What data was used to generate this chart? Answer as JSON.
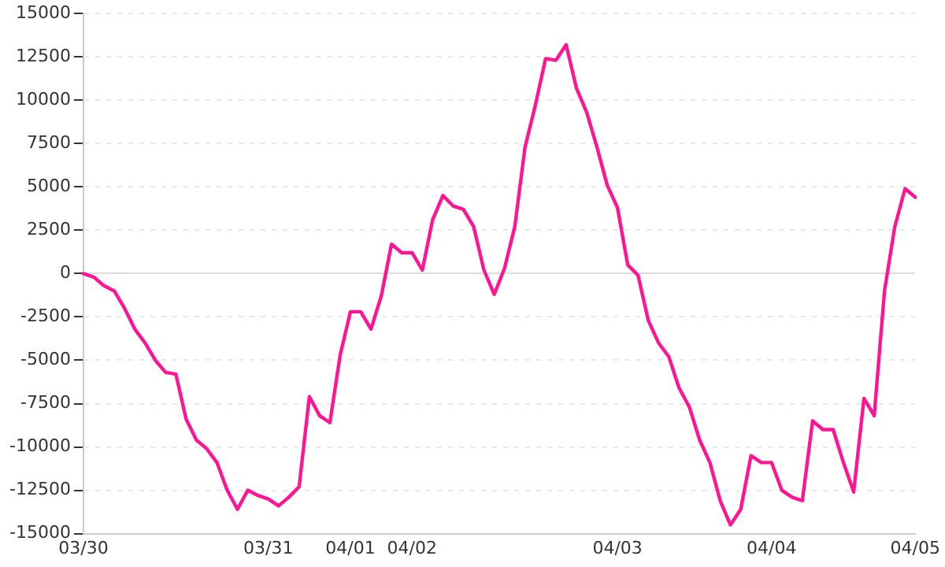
{
  "chart_data": {
    "type": "line",
    "categories": [
      "03/30",
      null,
      null,
      null,
      null,
      null,
      null,
      null,
      null,
      null,
      null,
      null,
      null,
      null,
      null,
      null,
      null,
      null,
      "03/31",
      null,
      null,
      null,
      null,
      null,
      null,
      null,
      "04/01",
      null,
      null,
      null,
      null,
      null,
      "04/02",
      null,
      null,
      null,
      null,
      null,
      null,
      null,
      null,
      null,
      null,
      null,
      null,
      null,
      null,
      null,
      null,
      null,
      null,
      null,
      "04/03",
      null,
      null,
      null,
      null,
      null,
      null,
      null,
      null,
      null,
      null,
      null,
      null,
      null,
      null,
      "04/04",
      null,
      null,
      null,
      null,
      null,
      null,
      null,
      null,
      null,
      null,
      null,
      null,
      null,
      "04/05"
    ],
    "series": [
      {
        "color": "#ff1493",
        "values": [
          0,
          -200,
          -700,
          -1000,
          -2000,
          -3200,
          -4000,
          -5000,
          -5700,
          -5800,
          -8400,
          -9600,
          -10100,
          -10900,
          -12500,
          -13600,
          -12500,
          -12800,
          -13000,
          -13400,
          -12900,
          -12300,
          -7100,
          -8200,
          -8600,
          -4700,
          -2200,
          -2200,
          -3200,
          -1300,
          1700,
          1200,
          1200,
          200,
          3100,
          4500,
          3900,
          3700,
          2700,
          200,
          -1200,
          300,
          2700,
          7300,
          9700,
          12400,
          12300,
          13200,
          10700,
          9300,
          7300,
          5100,
          3800,
          500,
          -100,
          -2700,
          -4000,
          -4800,
          -6600,
          -7700,
          -9600,
          -10900,
          -13100,
          -14500,
          -13600,
          -10500,
          -10900,
          -10900,
          -12500,
          -12900,
          -13100,
          -8500,
          -9000,
          -9000,
          -10900,
          -12600,
          -7200,
          -8200,
          -1000,
          2700,
          4900,
          4400
        ]
      }
    ],
    "ylim": [
      -15000,
      15000
    ],
    "yticks": [
      -15000,
      -12500,
      -10000,
      -7500,
      -5000,
      -2500,
      0,
      2500,
      5000,
      7500,
      10000,
      12500,
      15000
    ],
    "grid": "y",
    "legend": false,
    "marker": "none",
    "line_style": "solid"
  }
}
